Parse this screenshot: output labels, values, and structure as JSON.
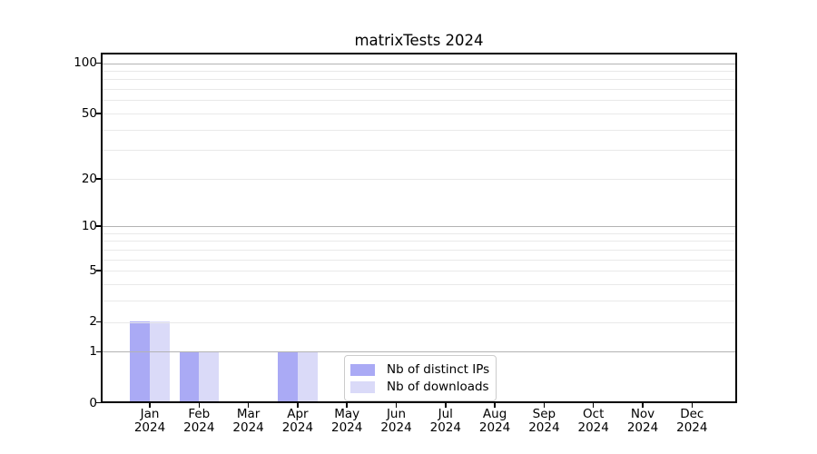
{
  "chart_data": {
    "type": "bar",
    "title": "matrixTests 2024",
    "categories": [
      "Jan 2024",
      "Feb 2024",
      "Mar 2024",
      "Apr 2024",
      "May 2024",
      "Jun 2024",
      "Jul 2024",
      "Aug 2024",
      "Sep 2024",
      "Oct 2024",
      "Nov 2024",
      "Dec 2024"
    ],
    "x_tick_months": [
      "Jan",
      "Feb",
      "Mar",
      "Apr",
      "May",
      "Jun",
      "Jul",
      "Aug",
      "Sep",
      "Oct",
      "Nov",
      "Dec"
    ],
    "x_tick_year": "2024",
    "series": [
      {
        "name": "Nb of distinct IPs",
        "color": "#aaaaf5",
        "values": [
          2,
          1,
          0,
          1,
          0,
          0,
          0,
          0,
          0,
          0,
          0,
          0
        ]
      },
      {
        "name": "Nb of downloads",
        "color": "#dadaf8",
        "values": [
          2,
          1,
          0,
          1,
          0,
          0,
          0,
          0,
          0,
          0,
          0,
          0
        ]
      }
    ],
    "y_axis": {
      "scale": "log10(1+x)",
      "tick_values": [
        0,
        1,
        2,
        5,
        10,
        20,
        50,
        100
      ],
      "major_gridlines": [
        1,
        10,
        100
      ],
      "minor_gridlines": [
        2,
        3,
        4,
        5,
        6,
        7,
        8,
        9,
        20,
        30,
        40,
        50,
        60,
        70,
        80,
        90
      ],
      "range": [
        0,
        115
      ]
    },
    "legend": {
      "position": "lower-center",
      "items": [
        "Nb of distinct IPs",
        "Nb of downloads"
      ]
    },
    "style_colors": {
      "major_grid": "#b3b3b3",
      "minor_grid": "#e9e9e9",
      "spine": "#000000",
      "bar_distinct_ips": "#aaaaf5",
      "bar_downloads": "#dadaf8"
    }
  }
}
